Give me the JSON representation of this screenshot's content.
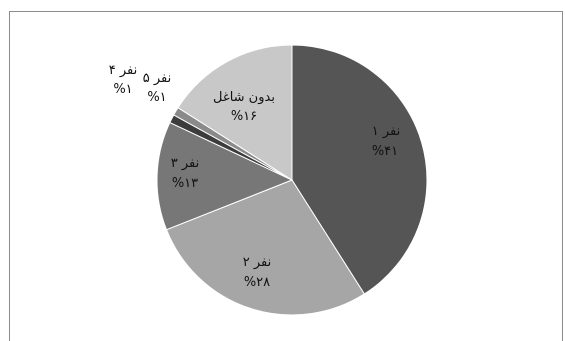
{
  "chart_data": {
    "type": "pie",
    "title": "",
    "slices": [
      {
        "name": "۱ نفر",
        "value": 41,
        "label_pct": "%۴۱",
        "color": "#555555"
      },
      {
        "name": "۲ نفر",
        "value": 28,
        "label_pct": "%۲۸",
        "color": "#a6a6a6"
      },
      {
        "name": "۳ نفر",
        "value": 13,
        "label_pct": "%۱۳",
        "color": "#777777"
      },
      {
        "name": "۴ نفر",
        "value": 1,
        "label_pct": "%۱",
        "color": "#3c3c3c"
      },
      {
        "name": "۵ نفر",
        "value": 1,
        "label_pct": "%۱",
        "color": "#8a8a8a"
      },
      {
        "name": "بدون شاغل",
        "value": 16,
        "label_pct": "%۱۶",
        "color": "#c8c8c8"
      }
    ],
    "legend": "none",
    "start": "top, clockwise"
  }
}
